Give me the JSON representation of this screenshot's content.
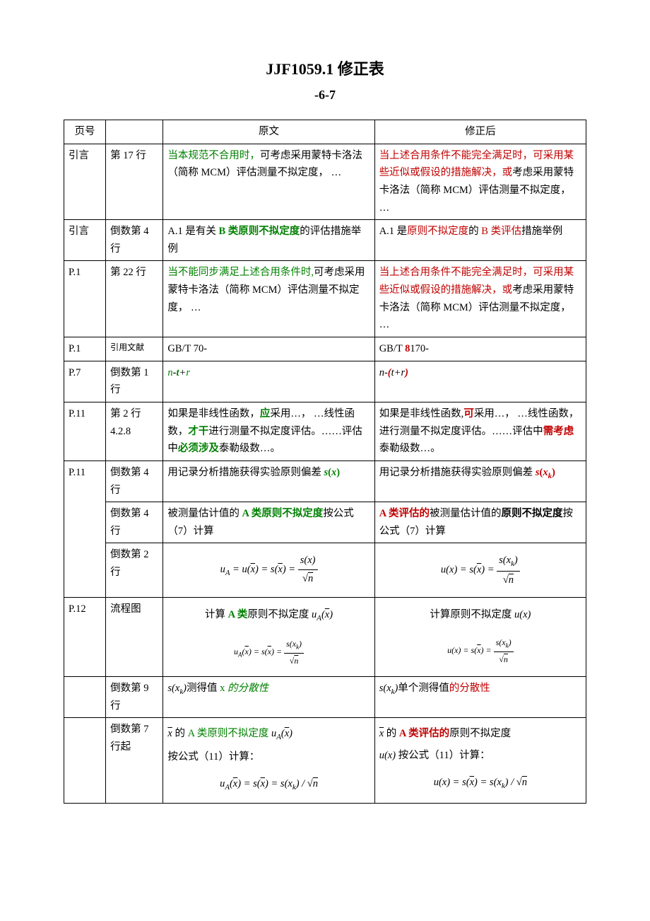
{
  "title": "JJF1059.1 修正表",
  "subtitle": "-6-7",
  "colors": {
    "green": "#008000",
    "red": "#c00000",
    "border": "#000000",
    "text": "#000000",
    "bg": "#ffffff"
  },
  "header": {
    "col1": "页号",
    "col2": "",
    "col3": "原文",
    "col4": "修正后"
  },
  "rows": [
    {
      "c1": "引言",
      "c2": "第 17 行",
      "c3": {
        "segments": [
          {
            "t": "当本规范不合用时，",
            "cls": "green"
          },
          {
            "t": "可考虑采用蒙特卡洛法（简称 MCM）评估测量不拟定度， …"
          }
        ]
      },
      "c4": {
        "segments": [
          {
            "t": "当上述合用条件不能完全满足时，可采用某些近似或假设的措施解决，或",
            "cls": "red"
          },
          {
            "t": "考虑采用蒙特卡洛法（简称 MCM）评估测量不拟定度， …"
          }
        ]
      }
    },
    {
      "c1": "引言",
      "c2": "倒数第 4 行",
      "c3": {
        "segments": [
          {
            "t": "A.1 是有关 "
          },
          {
            "t": "B 类原则不拟定度",
            "cls": "green b"
          },
          {
            "t": "的评估措施举例"
          }
        ]
      },
      "c4": {
        "segments": [
          {
            "t": "A.1 是"
          },
          {
            "t": "原则不拟定度",
            "cls": "red"
          },
          {
            "t": "的 "
          },
          {
            "t": "B 类评估",
            "cls": "red"
          },
          {
            "t": "措施举例"
          }
        ]
      }
    },
    {
      "c1": "P.1",
      "c2": "第 22 行",
      "c3": {
        "segments": [
          {
            "t": "当不能同步满足上述合用条件时,",
            "cls": "green"
          },
          {
            "t": "可考虑采用蒙特卡洛法（简称 MCM）评估测量不拟定度， …"
          }
        ]
      },
      "c4": {
        "segments": [
          {
            "t": "当上述合用条件不能完全满足时，可采用某些近似或假设的措施解决，或",
            "cls": "red"
          },
          {
            "t": "考虑采用蒙特卡洛法（简称 MCM）评估测量不拟定度， …"
          }
        ]
      }
    },
    {
      "c1": "P.1",
      "c2": "引用文献",
      "c3": {
        "segments": [
          {
            "t": "GB/T 70-"
          }
        ]
      },
      "c4": {
        "segments": [
          {
            "t": "GB/T "
          },
          {
            "t": "8",
            "cls": "red b"
          },
          {
            "t": "170-"
          }
        ]
      }
    },
    {
      "c1": "P.7",
      "c2": "倒数第 1 行",
      "c3": {
        "math": "n-t+r",
        "segments": [
          {
            "t": "n",
            "cls": "green it"
          },
          {
            "t": "-"
          },
          {
            "t": "t",
            "cls": "green b it"
          },
          {
            "t": "+"
          },
          {
            "t": "r",
            "cls": "green it"
          }
        ]
      },
      "c4": {
        "math": "n-(t+r)",
        "segments": [
          {
            "t": "n",
            "cls": "it"
          },
          {
            "t": "-"
          },
          {
            "t": "(",
            "cls": "red b"
          },
          {
            "t": "t",
            "cls": "it"
          },
          {
            "t": "+"
          },
          {
            "t": "r",
            "cls": "it"
          },
          {
            "t": ")",
            "cls": "red b"
          }
        ]
      }
    },
    {
      "c1": "P.11",
      "c2": "第 2 行 4.2.8",
      "c3": {
        "segments": [
          {
            "t": "如果是非线性函数，"
          },
          {
            "t": "应",
            "cls": "green b"
          },
          {
            "t": "采用…， …线性函数，"
          },
          {
            "t": "才干",
            "cls": "green b"
          },
          {
            "t": "进行测量不拟定度评估。……评估中"
          },
          {
            "t": "必须涉及",
            "cls": "green b"
          },
          {
            "t": "泰勒级数…。"
          }
        ]
      },
      "c4": {
        "segments": [
          {
            "t": "如果是非线性函数,"
          },
          {
            "t": "可",
            "cls": "red b"
          },
          {
            "t": "采用…， …线性函数，进行测量不拟定度评估。……评估中"
          },
          {
            "t": "需考虑",
            "cls": "red b"
          },
          {
            "t": "泰勒级数…。"
          }
        ]
      }
    },
    {
      "c1": "P.11",
      "c2": "倒数第 4 行",
      "c3": {
        "segments": [
          {
            "t": "用记录分析措施获得实验原则偏差 "
          },
          {
            "t": "s",
            "cls": "green b it"
          },
          {
            "t": "(",
            "cls": "green b"
          },
          {
            "t": "x",
            "cls": "green b it"
          },
          {
            "t": ")",
            "cls": "green b"
          }
        ]
      },
      "c4": {
        "segments": [
          {
            "t": "用记录分析措施获得实验原则偏差 "
          },
          {
            "t": "s",
            "cls": "red b it"
          },
          {
            "t": "(",
            "cls": "red b"
          },
          {
            "t": "x",
            "cls": "red b it"
          },
          {
            "t": "k",
            "cls": "red b",
            "sub": true
          },
          {
            "t": ")",
            "cls": "red b"
          }
        ]
      }
    },
    {
      "c1": "",
      "c2": "倒数第 4 行",
      "mergeUp": true,
      "c3": {
        "segments": [
          {
            "t": "被测量估计值的 "
          },
          {
            "t": "A 类原则不拟定度",
            "cls": "green b"
          },
          {
            "t": "按公式（7）计算"
          }
        ]
      },
      "c4": {
        "segments": [
          {
            "t": "A 类评估的",
            "cls": "red b"
          },
          {
            "t": "被测量估计值的"
          },
          {
            "t": "原则不拟定度",
            "cls": "b"
          },
          {
            "t": "按公式（7）计算"
          }
        ]
      }
    },
    {
      "c1": "",
      "c2": "倒数第 2 行",
      "mergeUp": true,
      "c3": {
        "formula": "uA = u(x̄) = s(x̄) = s(x)/√n",
        "parts": {
          "lhs": "u",
          "subA": "A",
          "mid1": "= u(",
          "xbar1": "x",
          ")": ")= s(",
          "xbar2": "x",
          ") = ": "",
          "num": "s(x)",
          "den": "√n"
        }
      },
      "c4": {
        "formula": "u(x) = s(x̄) = s(xk)/√n",
        "parts": {
          "lhs": "u(x) = s(",
          "xbar": "x",
          ") = ": "",
          "num": "s(x",
          "sub": "k",
          ")": "",
          "den": "√n"
        }
      }
    },
    {
      "c1": "P.12",
      "c2": "流程图",
      "c3": {
        "line1": {
          "pre": "计算 ",
          "green": "A 类",
          "post": "原则不拟定度 ",
          "sym": "uA(x̄)"
        },
        "line2": {
          "formula": "uA(x̄) = s(x̄) = s(xk)/√n"
        }
      },
      "c4": {
        "line1": {
          "pre": "计算原则不拟定度 ",
          "sym": "u(x)"
        },
        "line2": {
          "formula": "u(x) = s(x̄) = s(xk)/√n"
        }
      }
    },
    {
      "c1": "",
      "c2": "倒数第 9 行",
      "c3": {
        "segments": [
          {
            "t": "s",
            "it": true
          },
          {
            "t": "("
          },
          {
            "t": "x",
            "it": true
          },
          {
            "t": "k",
            "sub": true,
            "it": true
          },
          {
            "t": ")表征了"
          },
          {
            "t": "测得值 ",
            "cls": "green"
          },
          {
            "t": "x",
            "cls": "green it"
          },
          {
            "t": " 的分散性"
          }
        ]
      },
      "c4": {
        "segments": [
          {
            "t": "s",
            "it": true
          },
          {
            "t": "("
          },
          {
            "t": "x",
            "it": true
          },
          {
            "t": "k",
            "sub": true,
            "it": true
          },
          {
            "t": ")表征了"
          },
          {
            "t": "单个测得值",
            "cls": "red"
          },
          {
            "t": "的分散性"
          }
        ]
      }
    },
    {
      "c1": "",
      "c2": "倒数第 7 行起",
      "c3": {
        "p1": {
          "segs": [
            {
              "t": "x̄",
              "math": true
            },
            {
              "t": " 的 "
            },
            {
              "t": "A 类原则不拟定度 ",
              "cls": "green"
            },
            {
              "t": "uA(x̄)",
              "math": true
            }
          ]
        },
        "p2": "按公式（11）计算：",
        "p3": {
          "formula": "uA(x̄) = s(x̄) = s(xk)/√n"
        }
      },
      "c4": {
        "p1": {
          "segs": [
            {
              "t": "x̄",
              "math": true
            },
            {
              "t": " 的 "
            },
            {
              "t": "A 类评估的",
              "cls": "red b"
            },
            {
              "t": "原则不拟定度"
            }
          ]
        },
        "p2": {
          "segs": [
            {
              "t": "u(x)",
              "math": true
            },
            {
              "t": " 按公式（11）计算："
            }
          ]
        },
        "p3": {
          "formula": "u(x) = s(x̄) = s(xk)/√n"
        }
      }
    }
  ]
}
